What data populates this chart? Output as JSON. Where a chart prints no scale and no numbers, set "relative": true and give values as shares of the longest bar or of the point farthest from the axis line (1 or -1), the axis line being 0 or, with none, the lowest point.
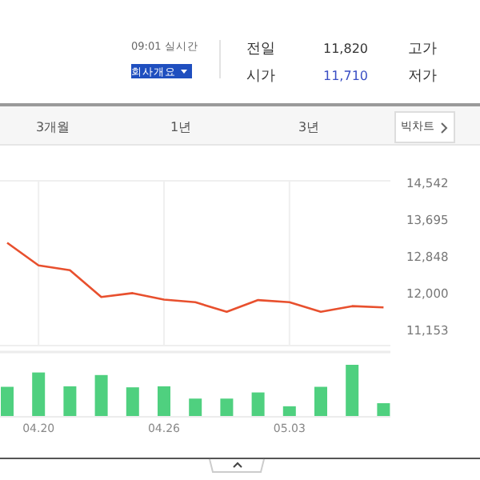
{
  "chart_data": [
    {
      "type": "other",
      "annotations": [
        "09:01 실시간",
        "회사개요",
        "전일",
        "11,820",
        "고가",
        "시가",
        "11,710",
        "저가",
        "3개월",
        "1년",
        "3년",
        "빅차트"
      ]
    },
    {
      "type": "line",
      "categories": [
        null,
        "04.20",
        null,
        null,
        null,
        "04.26",
        null,
        null,
        null,
        "05.03",
        null,
        null,
        null
      ],
      "values": [
        13150,
        12630,
        12520,
        11900,
        11990,
        11840,
        11780,
        11560,
        11830,
        11780,
        11560,
        11690,
        11660
      ],
      "color": "#e8502e",
      "ylim": [
        10780,
        14580
      ],
      "yticks": [
        {
          "value": 14542,
          "label": "14,542"
        },
        {
          "value": 13695,
          "label": "13,695"
        },
        {
          "value": 12848,
          "label": "12,848"
        },
        {
          "value": 12000,
          "label": "12,000"
        },
        {
          "value": 11153,
          "label": "11,153"
        }
      ],
      "grid": "x",
      "tick_labels": "y"
    },
    {
      "type": "bar",
      "categories": [
        null,
        "04.20",
        null,
        null,
        null,
        "04.26",
        null,
        null,
        null,
        "05.03",
        null,
        null,
        null
      ],
      "values": [
        0.57,
        0.85,
        0.58,
        0.8,
        0.56,
        0.58,
        0.34,
        0.34,
        0.46,
        0.19,
        0.57,
        1,
        0.25
      ],
      "color": "#4fd07f",
      "relative": true
    }
  ]
}
